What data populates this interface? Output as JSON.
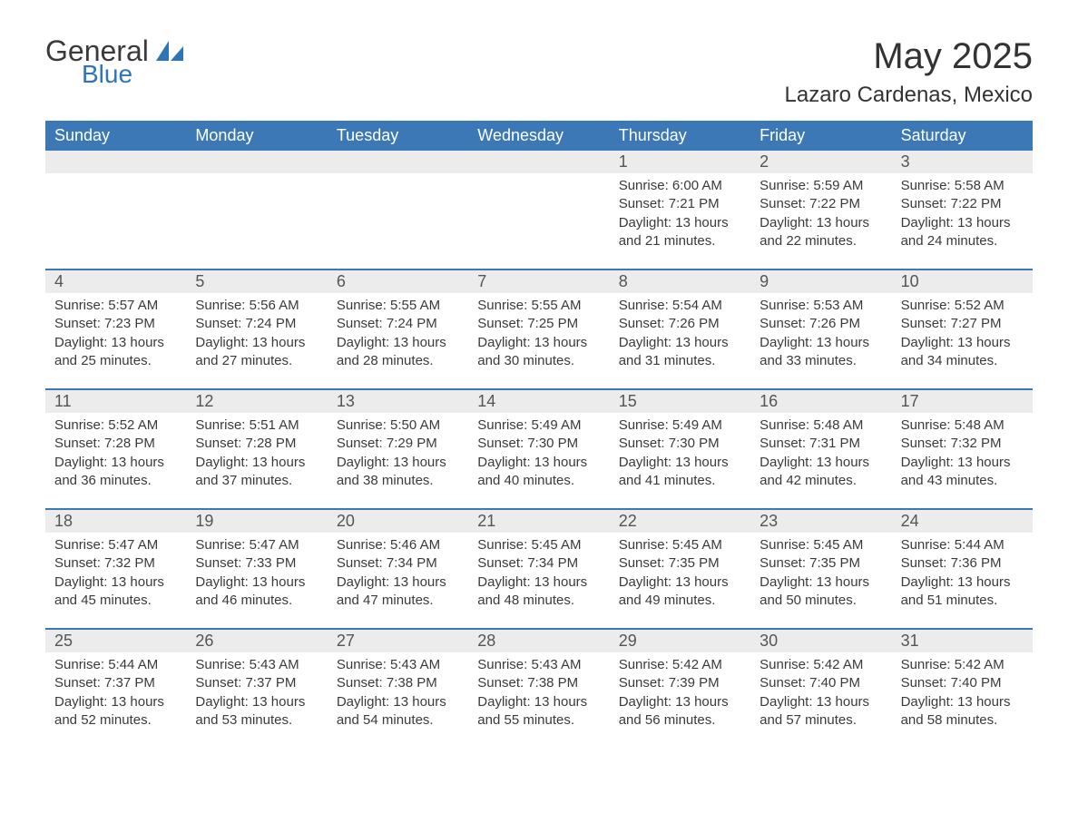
{
  "logo": {
    "text_general": "General",
    "text_blue": "Blue",
    "accent_color": "#2e75b6"
  },
  "title": "May 2025",
  "location": "Lazaro Cardenas, Mexico",
  "colors": {
    "header_bg": "#3b78b5",
    "header_text": "#ffffff",
    "daynum_bg": "#ececec",
    "body_text": "#3a3a3a",
    "page_bg": "#ffffff",
    "rule": "#3b78b5"
  },
  "day_names": [
    "Sunday",
    "Monday",
    "Tuesday",
    "Wednesday",
    "Thursday",
    "Friday",
    "Saturday"
  ],
  "weeks": [
    [
      {
        "day": "",
        "sunrise": "",
        "sunset": "",
        "daylight": ""
      },
      {
        "day": "",
        "sunrise": "",
        "sunset": "",
        "daylight": ""
      },
      {
        "day": "",
        "sunrise": "",
        "sunset": "",
        "daylight": ""
      },
      {
        "day": "",
        "sunrise": "",
        "sunset": "",
        "daylight": ""
      },
      {
        "day": "1",
        "sunrise": "Sunrise: 6:00 AM",
        "sunset": "Sunset: 7:21 PM",
        "daylight": "Daylight: 13 hours and 21 minutes."
      },
      {
        "day": "2",
        "sunrise": "Sunrise: 5:59 AM",
        "sunset": "Sunset: 7:22 PM",
        "daylight": "Daylight: 13 hours and 22 minutes."
      },
      {
        "day": "3",
        "sunrise": "Sunrise: 5:58 AM",
        "sunset": "Sunset: 7:22 PM",
        "daylight": "Daylight: 13 hours and 24 minutes."
      }
    ],
    [
      {
        "day": "4",
        "sunrise": "Sunrise: 5:57 AM",
        "sunset": "Sunset: 7:23 PM",
        "daylight": "Daylight: 13 hours and 25 minutes."
      },
      {
        "day": "5",
        "sunrise": "Sunrise: 5:56 AM",
        "sunset": "Sunset: 7:24 PM",
        "daylight": "Daylight: 13 hours and 27 minutes."
      },
      {
        "day": "6",
        "sunrise": "Sunrise: 5:55 AM",
        "sunset": "Sunset: 7:24 PM",
        "daylight": "Daylight: 13 hours and 28 minutes."
      },
      {
        "day": "7",
        "sunrise": "Sunrise: 5:55 AM",
        "sunset": "Sunset: 7:25 PM",
        "daylight": "Daylight: 13 hours and 30 minutes."
      },
      {
        "day": "8",
        "sunrise": "Sunrise: 5:54 AM",
        "sunset": "Sunset: 7:26 PM",
        "daylight": "Daylight: 13 hours and 31 minutes."
      },
      {
        "day": "9",
        "sunrise": "Sunrise: 5:53 AM",
        "sunset": "Sunset: 7:26 PM",
        "daylight": "Daylight: 13 hours and 33 minutes."
      },
      {
        "day": "10",
        "sunrise": "Sunrise: 5:52 AM",
        "sunset": "Sunset: 7:27 PM",
        "daylight": "Daylight: 13 hours and 34 minutes."
      }
    ],
    [
      {
        "day": "11",
        "sunrise": "Sunrise: 5:52 AM",
        "sunset": "Sunset: 7:28 PM",
        "daylight": "Daylight: 13 hours and 36 minutes."
      },
      {
        "day": "12",
        "sunrise": "Sunrise: 5:51 AM",
        "sunset": "Sunset: 7:28 PM",
        "daylight": "Daylight: 13 hours and 37 minutes."
      },
      {
        "day": "13",
        "sunrise": "Sunrise: 5:50 AM",
        "sunset": "Sunset: 7:29 PM",
        "daylight": "Daylight: 13 hours and 38 minutes."
      },
      {
        "day": "14",
        "sunrise": "Sunrise: 5:49 AM",
        "sunset": "Sunset: 7:30 PM",
        "daylight": "Daylight: 13 hours and 40 minutes."
      },
      {
        "day": "15",
        "sunrise": "Sunrise: 5:49 AM",
        "sunset": "Sunset: 7:30 PM",
        "daylight": "Daylight: 13 hours and 41 minutes."
      },
      {
        "day": "16",
        "sunrise": "Sunrise: 5:48 AM",
        "sunset": "Sunset: 7:31 PM",
        "daylight": "Daylight: 13 hours and 42 minutes."
      },
      {
        "day": "17",
        "sunrise": "Sunrise: 5:48 AM",
        "sunset": "Sunset: 7:32 PM",
        "daylight": "Daylight: 13 hours and 43 minutes."
      }
    ],
    [
      {
        "day": "18",
        "sunrise": "Sunrise: 5:47 AM",
        "sunset": "Sunset: 7:32 PM",
        "daylight": "Daylight: 13 hours and 45 minutes."
      },
      {
        "day": "19",
        "sunrise": "Sunrise: 5:47 AM",
        "sunset": "Sunset: 7:33 PM",
        "daylight": "Daylight: 13 hours and 46 minutes."
      },
      {
        "day": "20",
        "sunrise": "Sunrise: 5:46 AM",
        "sunset": "Sunset: 7:34 PM",
        "daylight": "Daylight: 13 hours and 47 minutes."
      },
      {
        "day": "21",
        "sunrise": "Sunrise: 5:45 AM",
        "sunset": "Sunset: 7:34 PM",
        "daylight": "Daylight: 13 hours and 48 minutes."
      },
      {
        "day": "22",
        "sunrise": "Sunrise: 5:45 AM",
        "sunset": "Sunset: 7:35 PM",
        "daylight": "Daylight: 13 hours and 49 minutes."
      },
      {
        "day": "23",
        "sunrise": "Sunrise: 5:45 AM",
        "sunset": "Sunset: 7:35 PM",
        "daylight": "Daylight: 13 hours and 50 minutes."
      },
      {
        "day": "24",
        "sunrise": "Sunrise: 5:44 AM",
        "sunset": "Sunset: 7:36 PM",
        "daylight": "Daylight: 13 hours and 51 minutes."
      }
    ],
    [
      {
        "day": "25",
        "sunrise": "Sunrise: 5:44 AM",
        "sunset": "Sunset: 7:37 PM",
        "daylight": "Daylight: 13 hours and 52 minutes."
      },
      {
        "day": "26",
        "sunrise": "Sunrise: 5:43 AM",
        "sunset": "Sunset: 7:37 PM",
        "daylight": "Daylight: 13 hours and 53 minutes."
      },
      {
        "day": "27",
        "sunrise": "Sunrise: 5:43 AM",
        "sunset": "Sunset: 7:38 PM",
        "daylight": "Daylight: 13 hours and 54 minutes."
      },
      {
        "day": "28",
        "sunrise": "Sunrise: 5:43 AM",
        "sunset": "Sunset: 7:38 PM",
        "daylight": "Daylight: 13 hours and 55 minutes."
      },
      {
        "day": "29",
        "sunrise": "Sunrise: 5:42 AM",
        "sunset": "Sunset: 7:39 PM",
        "daylight": "Daylight: 13 hours and 56 minutes."
      },
      {
        "day": "30",
        "sunrise": "Sunrise: 5:42 AM",
        "sunset": "Sunset: 7:40 PM",
        "daylight": "Daylight: 13 hours and 57 minutes."
      },
      {
        "day": "31",
        "sunrise": "Sunrise: 5:42 AM",
        "sunset": "Sunset: 7:40 PM",
        "daylight": "Daylight: 13 hours and 58 minutes."
      }
    ]
  ]
}
